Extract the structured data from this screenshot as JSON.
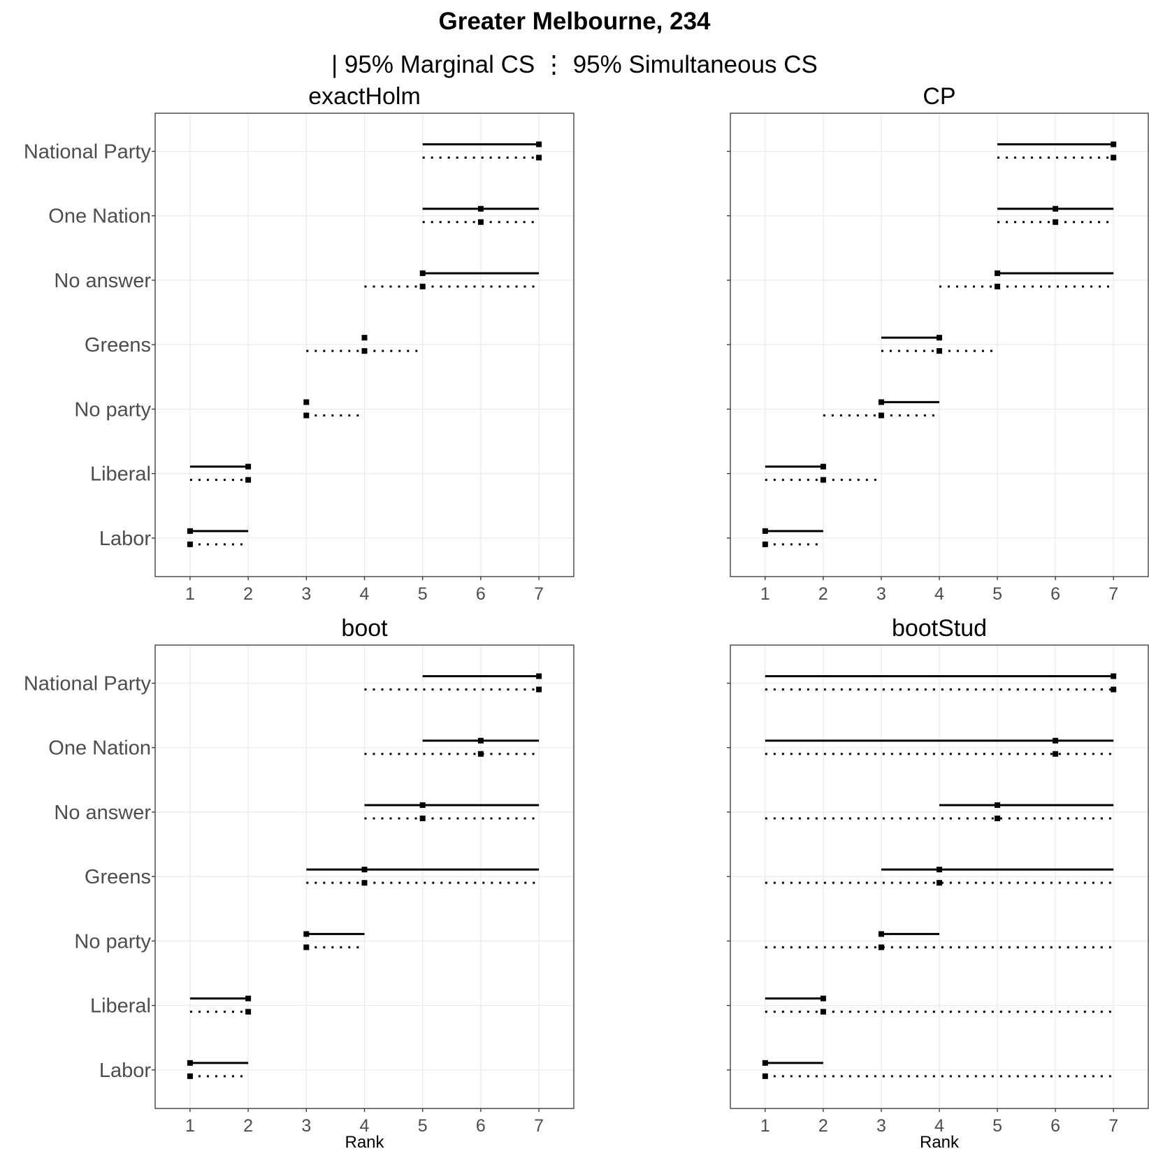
{
  "title": "Greater Melbourne, 234",
  "legend": {
    "marginal_glyph": "|",
    "marginal_label": "95% Marginal CS",
    "simultaneous_glyph": "⋮",
    "simultaneous_label": "95% Simultaneous CS"
  },
  "chart_data": {
    "type": "interval",
    "categories": [
      "National Party",
      "One Nation",
      "No answer",
      "Greens",
      "No party",
      "Liberal",
      "Labor"
    ],
    "xlabel": "Rank",
    "xticks": [
      1,
      2,
      3,
      4,
      5,
      6,
      7
    ],
    "xlim": [
      0.4,
      7.6
    ],
    "grid": true,
    "panels": [
      {
        "title": "exactHolm",
        "show_xlabel": false,
        "rows": [
          {
            "category": "National Party",
            "rank": 7,
            "marginal": [
              5,
              7
            ],
            "simultaneous": [
              5,
              7
            ]
          },
          {
            "category": "One Nation",
            "rank": 6,
            "marginal": [
              5,
              7
            ],
            "simultaneous": [
              5,
              7
            ]
          },
          {
            "category": "No answer",
            "rank": 5,
            "marginal": [
              5,
              7
            ],
            "simultaneous": [
              4,
              7
            ]
          },
          {
            "category": "Greens",
            "rank": 4,
            "marginal": [
              4,
              4
            ],
            "simultaneous": [
              3,
              5
            ]
          },
          {
            "category": "No party",
            "rank": 3,
            "marginal": [
              3,
              3
            ],
            "simultaneous": [
              3,
              4
            ]
          },
          {
            "category": "Liberal",
            "rank": 2,
            "marginal": [
              1,
              2
            ],
            "simultaneous": [
              1,
              2
            ]
          },
          {
            "category": "Labor",
            "rank": 1,
            "marginal": [
              1,
              2
            ],
            "simultaneous": [
              1,
              2
            ]
          }
        ]
      },
      {
        "title": "CP",
        "show_xlabel": false,
        "rows": [
          {
            "category": "National Party",
            "rank": 7,
            "marginal": [
              5,
              7
            ],
            "simultaneous": [
              5,
              7
            ]
          },
          {
            "category": "One Nation",
            "rank": 6,
            "marginal": [
              5,
              7
            ],
            "simultaneous": [
              5,
              7
            ]
          },
          {
            "category": "No answer",
            "rank": 5,
            "marginal": [
              5,
              7
            ],
            "simultaneous": [
              4,
              7
            ]
          },
          {
            "category": "Greens",
            "rank": 4,
            "marginal": [
              3,
              4
            ],
            "simultaneous": [
              3,
              5
            ]
          },
          {
            "category": "No party",
            "rank": 3,
            "marginal": [
              3,
              4
            ],
            "simultaneous": [
              2,
              4
            ]
          },
          {
            "category": "Liberal",
            "rank": 2,
            "marginal": [
              1,
              2
            ],
            "simultaneous": [
              1,
              3
            ]
          },
          {
            "category": "Labor",
            "rank": 1,
            "marginal": [
              1,
              2
            ],
            "simultaneous": [
              1,
              2
            ]
          }
        ]
      },
      {
        "title": "boot",
        "show_xlabel": true,
        "rows": [
          {
            "category": "National Party",
            "rank": 7,
            "marginal": [
              5,
              7
            ],
            "simultaneous": [
              4,
              7
            ]
          },
          {
            "category": "One Nation",
            "rank": 6,
            "marginal": [
              5,
              7
            ],
            "simultaneous": [
              4,
              7
            ]
          },
          {
            "category": "No answer",
            "rank": 5,
            "marginal": [
              4,
              7
            ],
            "simultaneous": [
              4,
              7
            ]
          },
          {
            "category": "Greens",
            "rank": 4,
            "marginal": [
              3,
              7
            ],
            "simultaneous": [
              3,
              7
            ]
          },
          {
            "category": "No party",
            "rank": 3,
            "marginal": [
              3,
              4
            ],
            "simultaneous": [
              3,
              4
            ]
          },
          {
            "category": "Liberal",
            "rank": 2,
            "marginal": [
              1,
              2
            ],
            "simultaneous": [
              1,
              2
            ]
          },
          {
            "category": "Labor",
            "rank": 1,
            "marginal": [
              1,
              2
            ],
            "simultaneous": [
              1,
              2
            ]
          }
        ]
      },
      {
        "title": "bootStud",
        "show_xlabel": true,
        "rows": [
          {
            "category": "National Party",
            "rank": 7,
            "marginal": [
              1,
              7
            ],
            "simultaneous": [
              1,
              7
            ]
          },
          {
            "category": "One Nation",
            "rank": 6,
            "marginal": [
              1,
              7
            ],
            "simultaneous": [
              1,
              7
            ]
          },
          {
            "category": "No answer",
            "rank": 5,
            "marginal": [
              4,
              7
            ],
            "simultaneous": [
              1,
              7
            ]
          },
          {
            "category": "Greens",
            "rank": 4,
            "marginal": [
              3,
              7
            ],
            "simultaneous": [
              1,
              7
            ]
          },
          {
            "category": "No party",
            "rank": 3,
            "marginal": [
              3,
              4
            ],
            "simultaneous": [
              1,
              7
            ]
          },
          {
            "category": "Liberal",
            "rank": 2,
            "marginal": [
              1,
              2
            ],
            "simultaneous": [
              1,
              7
            ]
          },
          {
            "category": "Labor",
            "rank": 1,
            "marginal": [
              1,
              2
            ],
            "simultaneous": [
              1,
              7
            ]
          }
        ]
      }
    ]
  }
}
